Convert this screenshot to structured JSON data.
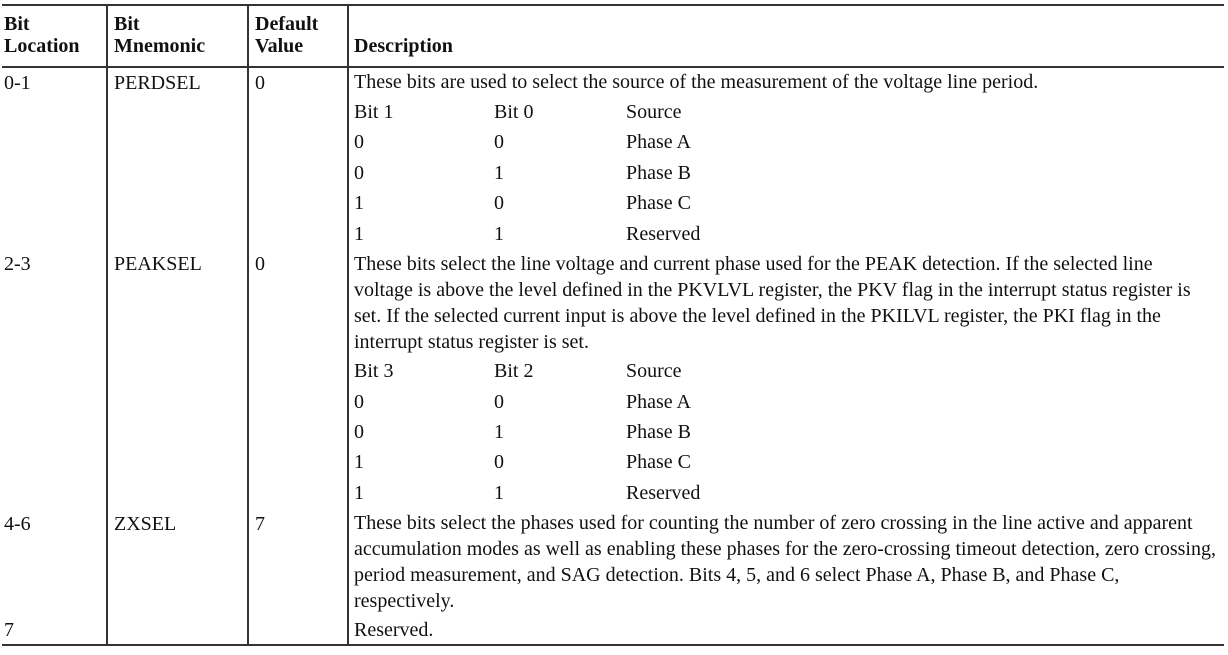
{
  "headers": {
    "bit_location": [
      "Bit",
      "Location"
    ],
    "bit_mnemonic": [
      "Bit",
      "Mnemonic"
    ],
    "default_value": [
      "Default",
      "Value"
    ],
    "description": "Description"
  },
  "rows": [
    {
      "location": "0-1",
      "mnemonic": "PERDSEL",
      "default": "0",
      "description": "These bits are used to select the source of the measurement of the voltage line period.",
      "subtable": {
        "header": [
          "Bit 1",
          "Bit 0",
          "Source"
        ],
        "rows": [
          [
            "0",
            "0",
            "Phase A"
          ],
          [
            "0",
            "1",
            "Phase B"
          ],
          [
            "1",
            "0",
            "Phase C"
          ],
          [
            "1",
            "1",
            "Reserved"
          ]
        ]
      }
    },
    {
      "location": "2-3",
      "mnemonic": "PEAKSEL",
      "default": "0",
      "description": "These bits select the line voltage and current phase used for the PEAK detection. If the selected line voltage is above the level defined in the PKVLVL register, the PKV flag in the interrupt status register is set. If the selected current input is above the level defined in the PKILVL register, the PKI flag in the interrupt status register is set.",
      "subtable": {
        "header": [
          "Bit 3",
          "Bit 2",
          "Source"
        ],
        "rows": [
          [
            "0",
            "0",
            "Phase A"
          ],
          [
            "0",
            "1",
            "Phase B"
          ],
          [
            "1",
            "0",
            "Phase C"
          ],
          [
            "1",
            "1",
            "Reserved"
          ]
        ]
      }
    },
    {
      "location": "4-6",
      "mnemonic": "ZXSEL",
      "default": "7",
      "description": "These bits select the phases used for counting the number of zero crossing in the line active and apparent accumulation modes as well as enabling these phases for the zero-crossing timeout detection, zero crossing, period measurement, and SAG detection. Bits 4, 5, and 6 select Phase A, Phase B, and Phase C, respectively."
    },
    {
      "location": "7",
      "mnemonic": "",
      "default": "",
      "description": "Reserved."
    }
  ]
}
